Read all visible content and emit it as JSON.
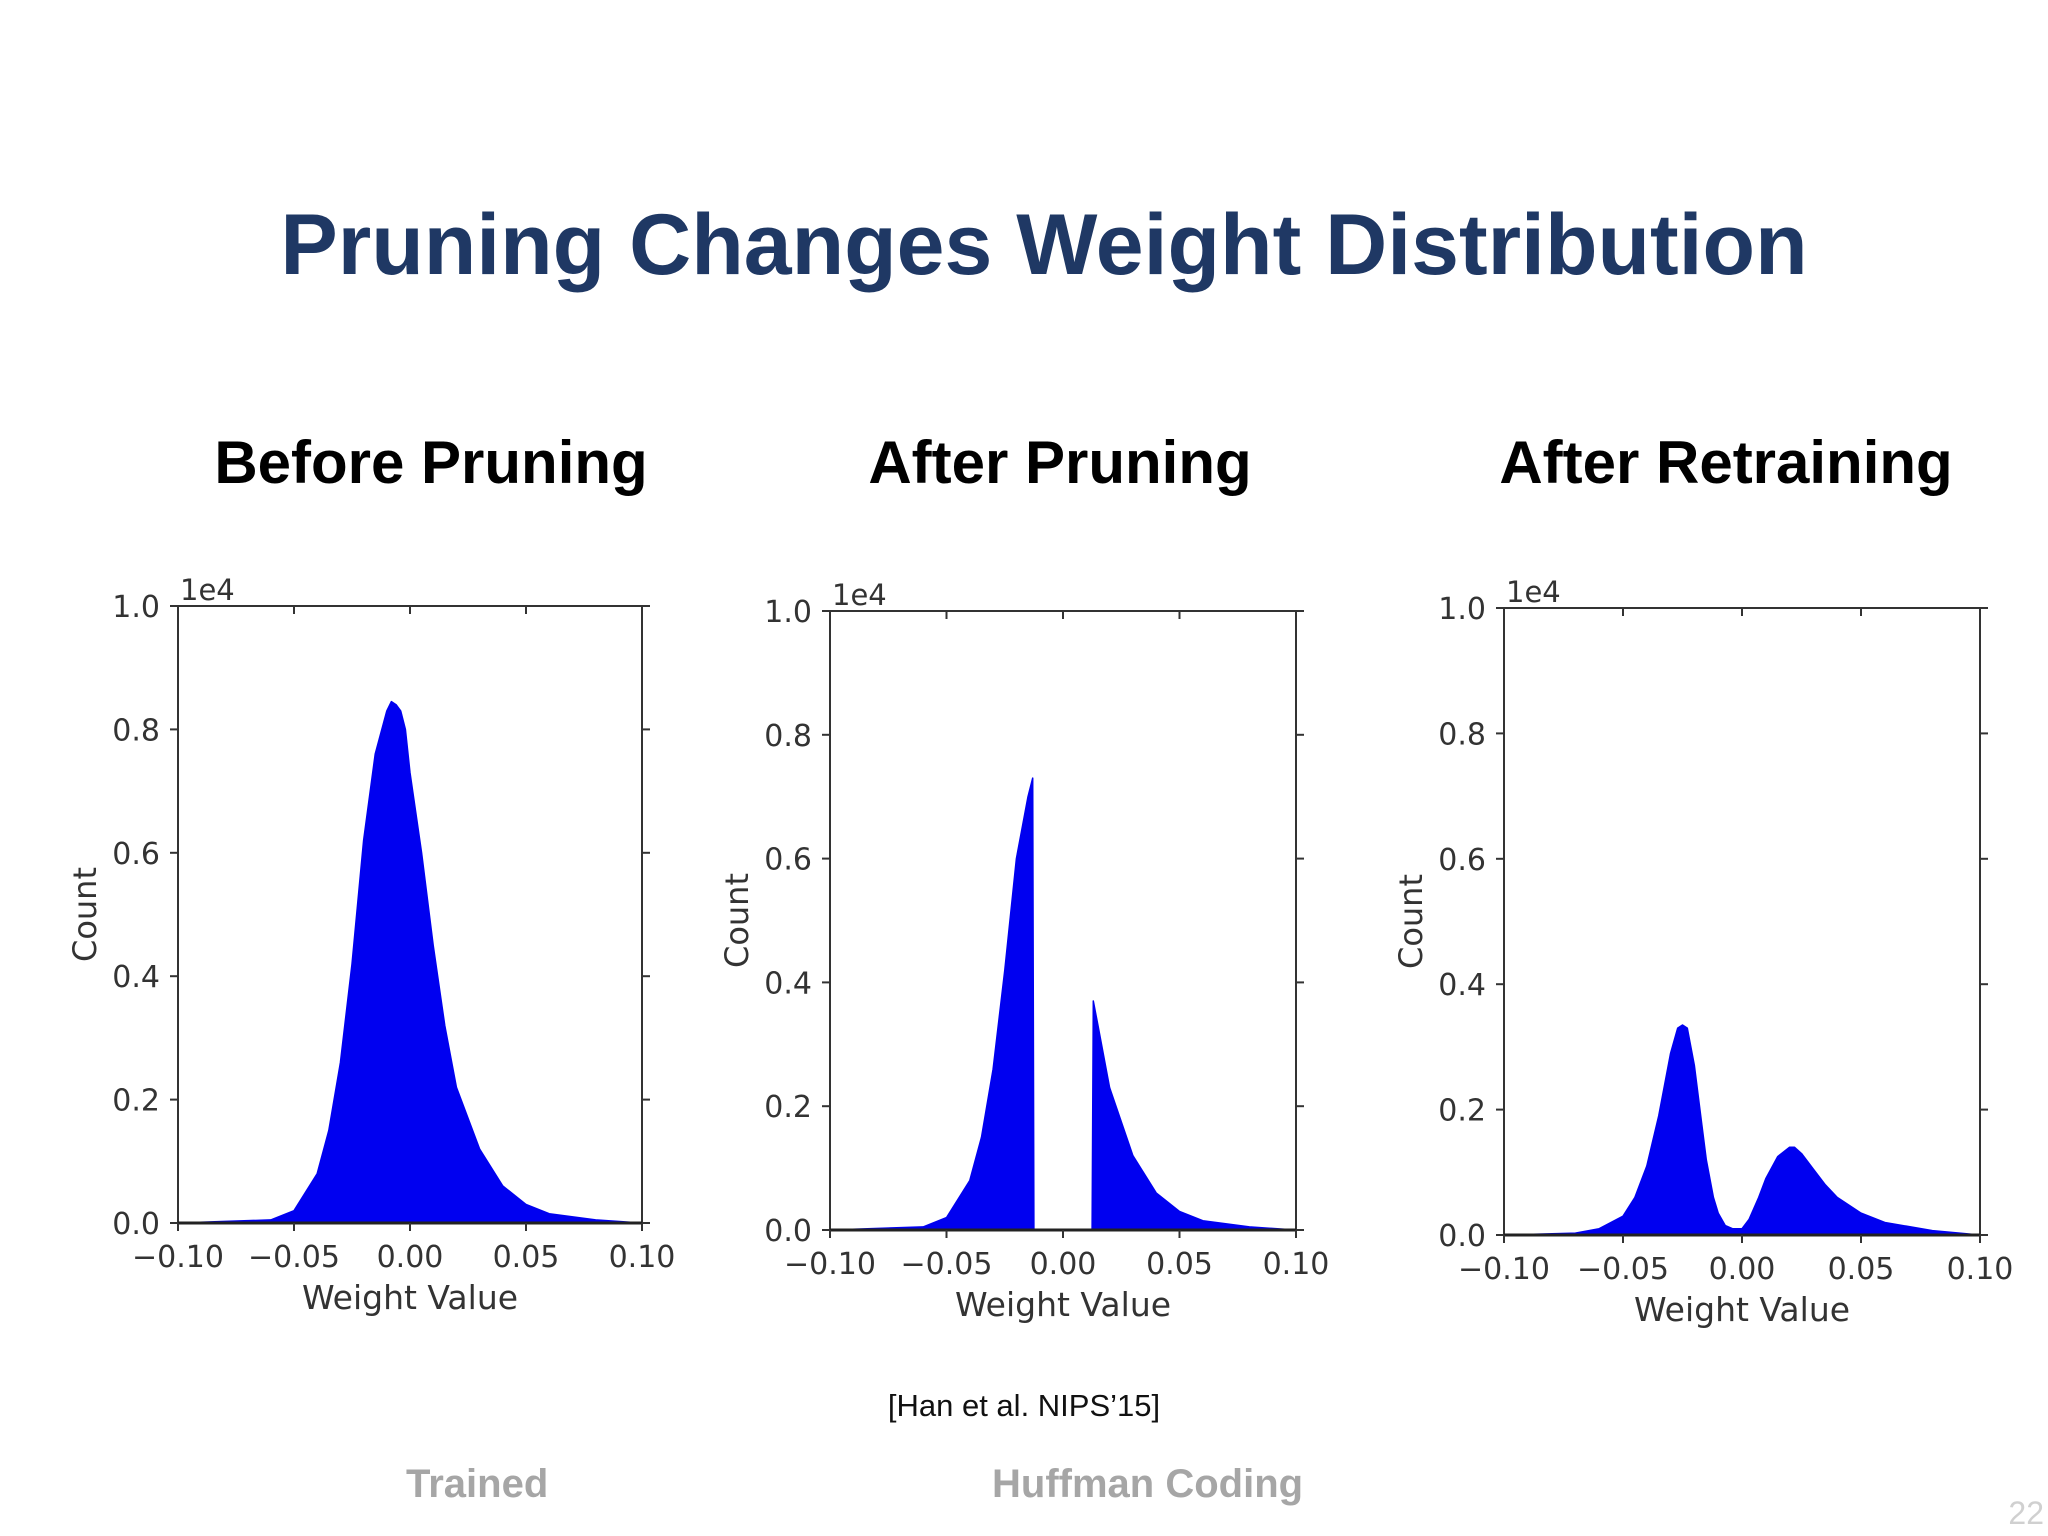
{
  "slide": {
    "title": "Pruning Changes Weight Distribution",
    "citation": "[Han et al. NIPS’15]",
    "footer_left": "Trained",
    "footer_right": "Huffman Coding",
    "page_number": "22"
  },
  "colors": {
    "title": "#1f3864",
    "histogram_fill": "#0000f0",
    "footer": "#a6a6a6"
  },
  "chart_data": [
    {
      "type": "area",
      "title": "Before Pruning",
      "xlabel": "Weight Value",
      "ylabel": "Count",
      "offset_text": "1e4",
      "xlim": [
        -0.1,
        0.1
      ],
      "ylim": [
        0,
        1.0
      ],
      "xticks": [
        "−0.10",
        "−0.05",
        "0.00",
        "0.05",
        "0.10"
      ],
      "yticks": [
        "0.0",
        "0.2",
        "0.4",
        "0.6",
        "0.8",
        "1.0"
      ],
      "series": [
        {
          "x": [
            -0.1,
            -0.06,
            -0.05,
            -0.04,
            -0.035,
            -0.03,
            -0.025,
            -0.02,
            -0.015,
            -0.01,
            -0.008,
            -0.006,
            -0.004,
            -0.002,
            0.0,
            0.005,
            0.01,
            0.015,
            0.02,
            0.03,
            0.04,
            0.05,
            0.06,
            0.08,
            0.1
          ],
          "values": [
            0.0,
            0.005,
            0.02,
            0.08,
            0.15,
            0.26,
            0.42,
            0.62,
            0.76,
            0.83,
            0.845,
            0.84,
            0.83,
            0.8,
            0.73,
            0.6,
            0.45,
            0.32,
            0.22,
            0.12,
            0.06,
            0.03,
            0.015,
            0.005,
            0.0
          ]
        }
      ]
    },
    {
      "type": "area",
      "title": "After Pruning",
      "xlabel": "Weight Value",
      "ylabel": "Count",
      "offset_text": "1e4",
      "xlim": [
        -0.1,
        0.1
      ],
      "ylim": [
        0,
        1.0
      ],
      "xticks": [
        "−0.10",
        "−0.05",
        "0.00",
        "0.05",
        "0.10"
      ],
      "yticks": [
        "0.0",
        "0.2",
        "0.4",
        "0.6",
        "0.8",
        "1.0"
      ],
      "series": [
        {
          "x": [
            -0.1,
            -0.06,
            -0.05,
            -0.04,
            -0.035,
            -0.03,
            -0.025,
            -0.02,
            -0.015,
            -0.013,
            -0.0125
          ],
          "values": [
            0.0,
            0.005,
            0.02,
            0.08,
            0.15,
            0.26,
            0.42,
            0.6,
            0.7,
            0.73,
            0.0
          ]
        },
        {
          "x": [
            0.0125,
            0.013,
            0.015,
            0.02,
            0.03,
            0.04,
            0.05,
            0.06,
            0.08,
            0.1
          ],
          "values": [
            0.0,
            0.37,
            0.33,
            0.23,
            0.12,
            0.06,
            0.03,
            0.015,
            0.005,
            0.0
          ]
        }
      ]
    },
    {
      "type": "area",
      "title": "After Retraining",
      "xlabel": "Weight Value",
      "ylabel": "Count",
      "offset_text": "1e4",
      "xlim": [
        -0.1,
        0.1
      ],
      "ylim": [
        0,
        1.0
      ],
      "xticks": [
        "−0.10",
        "−0.05",
        "0.00",
        "0.05",
        "0.10"
      ],
      "yticks": [
        "0.0",
        "0.2",
        "0.4",
        "0.6",
        "0.8",
        "1.0"
      ],
      "series": [
        {
          "x": [
            -0.1,
            -0.07,
            -0.06,
            -0.05,
            -0.045,
            -0.04,
            -0.035,
            -0.03,
            -0.027,
            -0.025,
            -0.023,
            -0.02,
            -0.017,
            -0.015,
            -0.012,
            -0.01,
            -0.007,
            -0.004,
            0.0,
            0.003,
            0.007,
            0.01,
            0.015,
            0.02,
            0.022,
            0.025,
            0.03,
            0.035,
            0.04,
            0.05,
            0.06,
            0.08,
            0.1
          ],
          "values": [
            0.0,
            0.003,
            0.01,
            0.03,
            0.06,
            0.11,
            0.19,
            0.29,
            0.33,
            0.335,
            0.33,
            0.27,
            0.18,
            0.12,
            0.06,
            0.035,
            0.015,
            0.01,
            0.01,
            0.025,
            0.06,
            0.09,
            0.125,
            0.14,
            0.14,
            0.13,
            0.105,
            0.08,
            0.06,
            0.035,
            0.02,
            0.007,
            0.0
          ]
        }
      ]
    }
  ]
}
